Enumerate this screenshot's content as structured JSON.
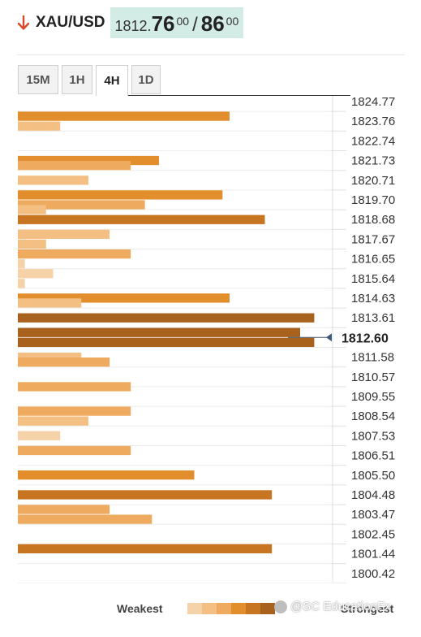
{
  "header": {
    "symbol": "XAU/USD",
    "price_prefix": "1812.",
    "bid_big": "76",
    "bid_sup": "00",
    "separator": "/",
    "ask_big": "86",
    "ask_sup": "00",
    "arrow_icon": "down-arrow-icon",
    "arrow_color": "#d94a2b"
  },
  "tabs": [
    {
      "label": "15M",
      "active": false
    },
    {
      "label": "1H",
      "active": false
    },
    {
      "label": "4H",
      "active": true
    },
    {
      "label": "1D",
      "active": false
    }
  ],
  "chart_data": {
    "type": "bar",
    "orientation": "horizontal",
    "tick_labels": [
      "1824.77",
      "1823.76",
      "1822.74",
      "1821.73",
      "1820.71",
      "1819.70",
      "1818.68",
      "1817.67",
      "1816.65",
      "1815.64",
      "1814.63",
      "1813.61",
      "1812.60",
      "1811.58",
      "1810.57",
      "1809.55",
      "1808.54",
      "1807.53",
      "1806.51",
      "1805.50",
      "1804.48",
      "1803.47",
      "1802.45",
      "1801.44",
      "1800.42"
    ],
    "current_price": "1812.60",
    "max_strength": 5,
    "bars": [
      {
        "price": 1823.76,
        "offset": -0.5,
        "value": 3,
        "level": 3
      },
      {
        "price": 1823.76,
        "offset": 0.5,
        "value": 0.6,
        "level": 1
      },
      {
        "price": 1821.73,
        "offset": 0,
        "value": 2,
        "level": 3
      },
      {
        "price": 1821.73,
        "offset": 0.5,
        "value": 1.6,
        "level": 2
      },
      {
        "price": 1820.71,
        "offset": 0,
        "value": 1,
        "level": 1
      },
      {
        "price": 1819.7,
        "offset": -0.5,
        "value": 2.9,
        "level": 3
      },
      {
        "price": 1819.7,
        "offset": 0.5,
        "value": 1.8,
        "level": 2
      },
      {
        "price": 1819.7,
        "offset": 1.0,
        "value": 0.4,
        "level": 1
      },
      {
        "price": 1818.68,
        "offset": 0,
        "value": 3.5,
        "level": 4
      },
      {
        "price": 1817.67,
        "offset": -0.5,
        "value": 1.3,
        "level": 1
      },
      {
        "price": 1817.67,
        "offset": 0.5,
        "value": 0.4,
        "level": 1
      },
      {
        "price": 1816.65,
        "offset": -0.5,
        "value": 1.6,
        "level": 2
      },
      {
        "price": 1816.65,
        "offset": 0.5,
        "value": 0.1,
        "level": 0
      },
      {
        "price": 1815.64,
        "offset": -0.5,
        "value": 0.5,
        "level": 0
      },
      {
        "price": 1815.64,
        "offset": 0.5,
        "value": 0.1,
        "level": 0
      },
      {
        "price": 1814.63,
        "offset": 0,
        "value": 3,
        "level": 3
      },
      {
        "price": 1814.63,
        "offset": 0.5,
        "value": 0.9,
        "level": 1
      },
      {
        "price": 1813.61,
        "offset": 0,
        "value": 4.2,
        "level": 5
      },
      {
        "price": 1812.6,
        "offset": -0.5,
        "value": 4,
        "level": 5
      },
      {
        "price": 1812.6,
        "offset": 0.5,
        "value": 4.2,
        "level": 5
      },
      {
        "price": 1811.58,
        "offset": 0,
        "value": 0.9,
        "level": 1
      },
      {
        "price": 1811.58,
        "offset": 0.5,
        "value": 1.3,
        "level": 2
      },
      {
        "price": 1809.55,
        "offset": -1.0,
        "value": 1.6,
        "level": 2
      },
      {
        "price": 1808.54,
        "offset": -0.5,
        "value": 1.6,
        "level": 2
      },
      {
        "price": 1808.54,
        "offset": 0.5,
        "value": 1,
        "level": 1
      },
      {
        "price": 1807.53,
        "offset": 0,
        "value": 0.6,
        "level": 0
      },
      {
        "price": 1806.51,
        "offset": -0.5,
        "value": 1.6,
        "level": 2
      },
      {
        "price": 1805.5,
        "offset": 0,
        "value": 2.5,
        "level": 3
      },
      {
        "price": 1804.48,
        "offset": 0,
        "value": 3.6,
        "level": 4
      },
      {
        "price": 1803.47,
        "offset": -0.5,
        "value": 1.3,
        "level": 2
      },
      {
        "price": 1803.47,
        "offset": 0.5,
        "value": 1.9,
        "level": 2
      },
      {
        "price": 1801.44,
        "offset": -0.5,
        "value": 3.6,
        "level": 4
      }
    ],
    "level_colors": [
      "#f5d2a8",
      "#f3bf83",
      "#eeaa5f",
      "#e38e2c",
      "#c77520",
      "#a8621d"
    ],
    "legend_weak": "Weakest",
    "legend_strong": "Strongest",
    "grid": true
  },
  "watermark": "@SC EducationFx"
}
